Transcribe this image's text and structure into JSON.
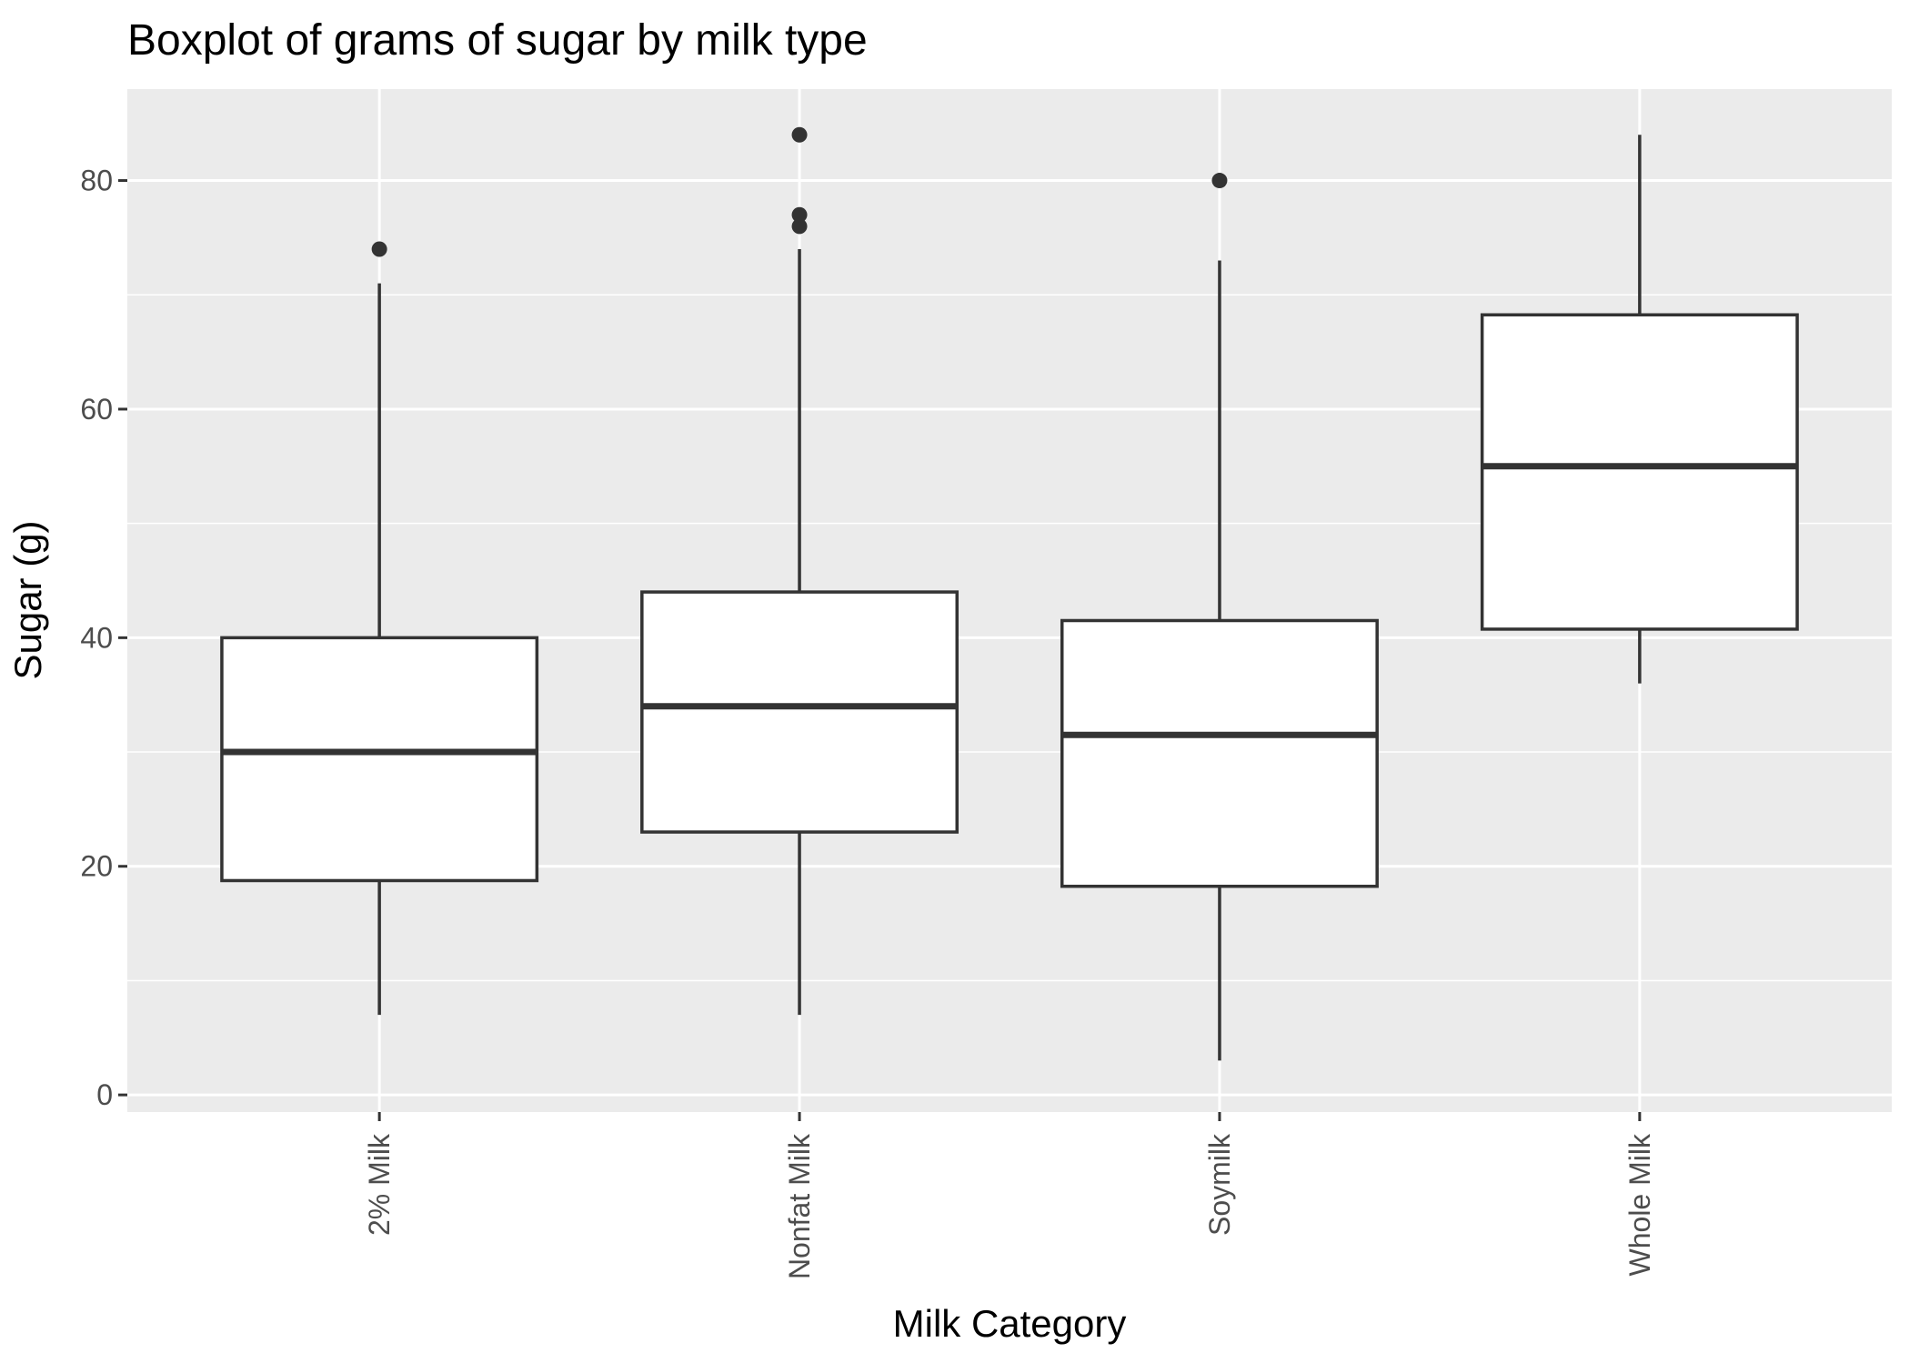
{
  "chart_data": {
    "type": "boxplot",
    "title": "Boxplot of grams of sugar by milk type",
    "xlabel": "Milk Category",
    "ylabel": "Sugar (g)",
    "ylim": [
      -1.5,
      88
    ],
    "yticks": [
      0,
      20,
      40,
      60,
      80
    ],
    "grid": true,
    "categories": [
      "2% Milk",
      "Nonfat Milk",
      "Soymilk",
      "Whole Milk"
    ],
    "boxes": [
      {
        "category": "2% Milk",
        "whisker_low": 7,
        "q1": 18.75,
        "median": 30,
        "q3": 40,
        "whisker_high": 71,
        "outliers": [
          74
        ]
      },
      {
        "category": "Nonfat Milk",
        "whisker_low": 7,
        "q1": 23,
        "median": 34,
        "q3": 44,
        "whisker_high": 74,
        "outliers": [
          76,
          77,
          84
        ]
      },
      {
        "category": "Soymilk",
        "whisker_low": 3,
        "q1": 18.25,
        "median": 31.5,
        "q3": 41.5,
        "whisker_high": 73,
        "outliers": [
          80
        ]
      },
      {
        "category": "Whole Milk",
        "whisker_low": 36,
        "q1": 40.75,
        "median": 55,
        "q3": 68.25,
        "whisker_high": 84,
        "outliers": []
      }
    ],
    "colors": {
      "panel_background": "#ebebeb",
      "grid_line": "#ffffff",
      "box_fill": "#ffffff",
      "box_line": "#333333",
      "tick_color": "#333333",
      "tick_label": "#4d4d4d"
    }
  }
}
